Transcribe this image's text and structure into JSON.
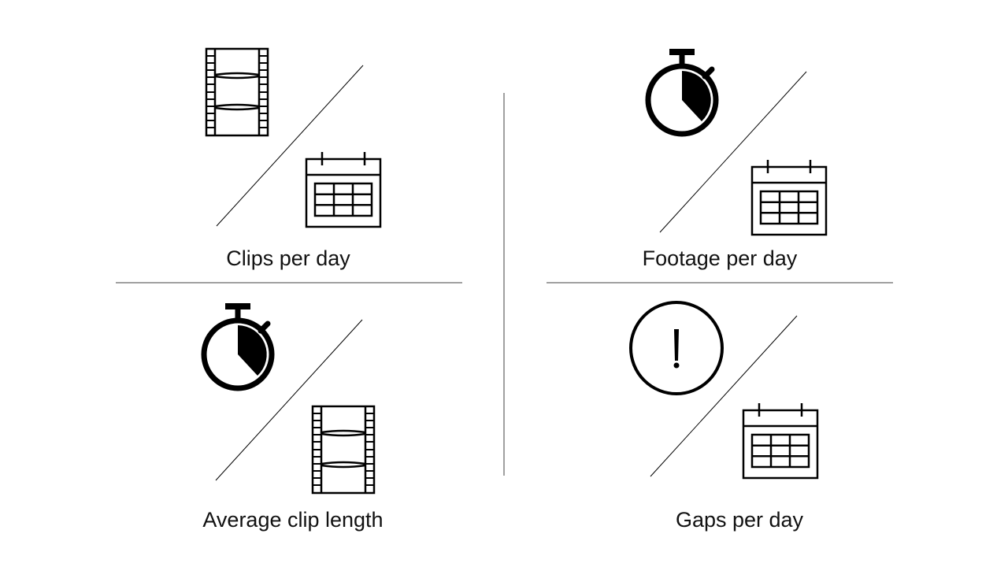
{
  "quadrants": [
    {
      "label": "Clips per day",
      "top_icon": "film-strip-icon",
      "bottom_icon": "calendar-icon"
    },
    {
      "label": "Footage per day",
      "top_icon": "stopwatch-icon",
      "bottom_icon": "calendar-icon"
    },
    {
      "label": "Average clip length",
      "top_icon": "stopwatch-icon",
      "bottom_icon": "film-strip-icon"
    },
    {
      "label": "Gaps per day",
      "top_icon": "alert-circle-icon",
      "bottom_icon": "calendar-icon"
    }
  ],
  "colors": {
    "ink": "#000000",
    "divider": "#808080",
    "text": "#111111",
    "background": "#ffffff"
  }
}
